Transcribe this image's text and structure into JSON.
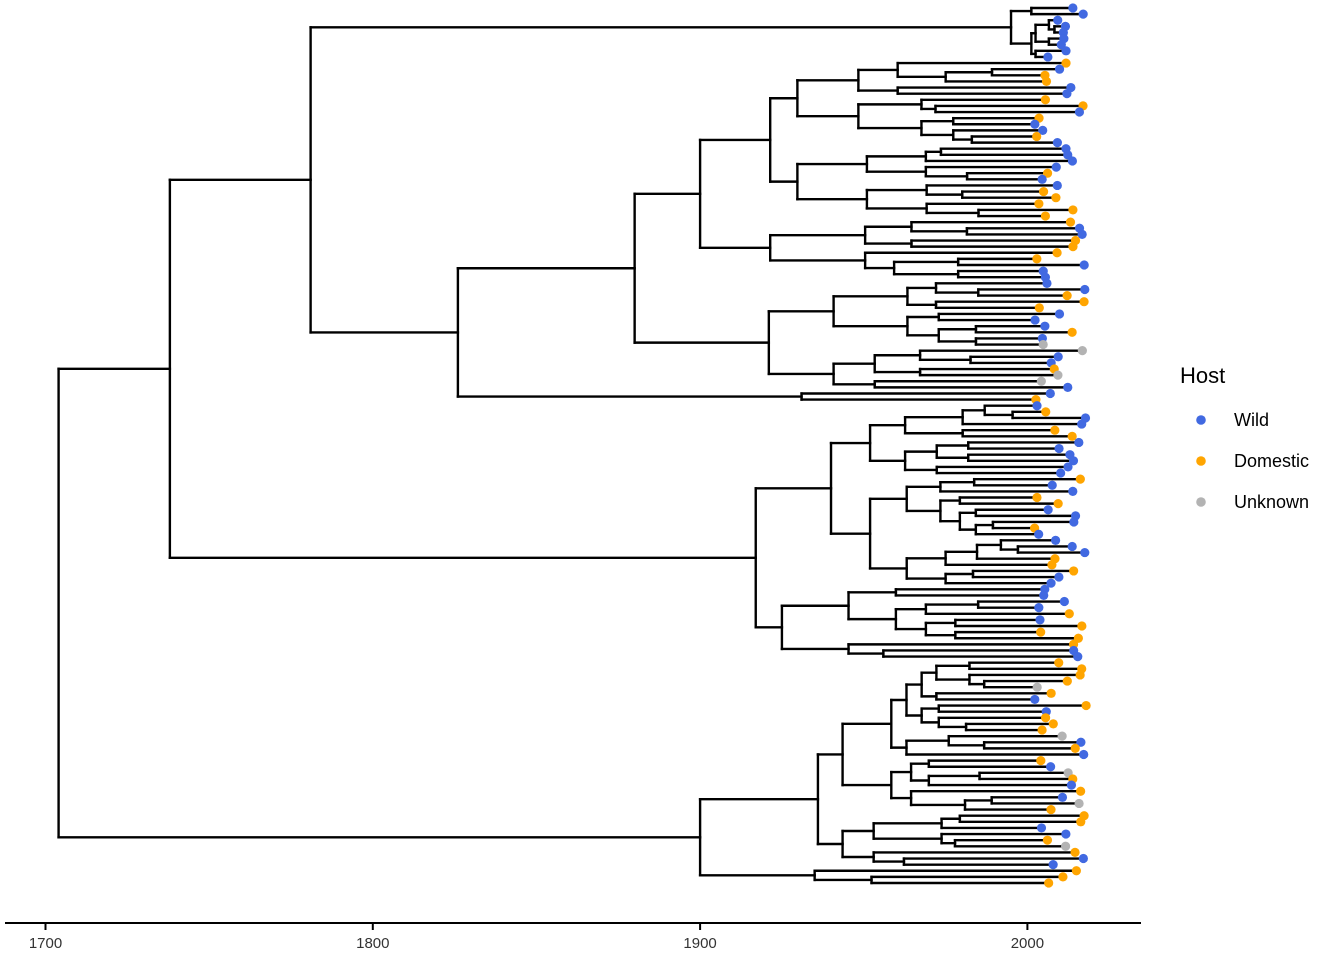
{
  "chart_data": {
    "type": "phylogenetic-tree",
    "xaxis": {
      "label": "",
      "range": [
        1697,
        2033
      ],
      "ticks": [
        1700,
        1800,
        1900,
        2000
      ],
      "tick_labels": [
        "1700",
        "1800",
        "1900",
        "2000"
      ]
    },
    "legend": {
      "title": "Host",
      "placement": "right",
      "categories": [
        {
          "key": "wild",
          "label": "Wild",
          "color": "#4169E1"
        },
        {
          "key": "domestic",
          "label": "Domestic",
          "color": "#FFA500"
        },
        {
          "key": "unknown",
          "label": "Unknown",
          "color": "#B3B3B3"
        }
      ]
    },
    "root_date": 1704,
    "major_clade_dates": {
      "root": 1704,
      "upper_group": 1738,
      "clade_A": 1781,
      "clade_A_inner": 1826,
      "clade_A_sub": 1880,
      "clade_B": 1917,
      "clade_C": 1900
    },
    "tip_host_counts_estimated": {
      "wild": 88,
      "domestic": 78,
      "unknown": 8
    },
    "tip_date_range": [
      2002,
      2018
    ]
  },
  "colors": {
    "branch": "#000000",
    "axis": "#000000",
    "wild": "#4169E1",
    "domestic": "#FFA500",
    "unknown": "#B3B3B3"
  }
}
